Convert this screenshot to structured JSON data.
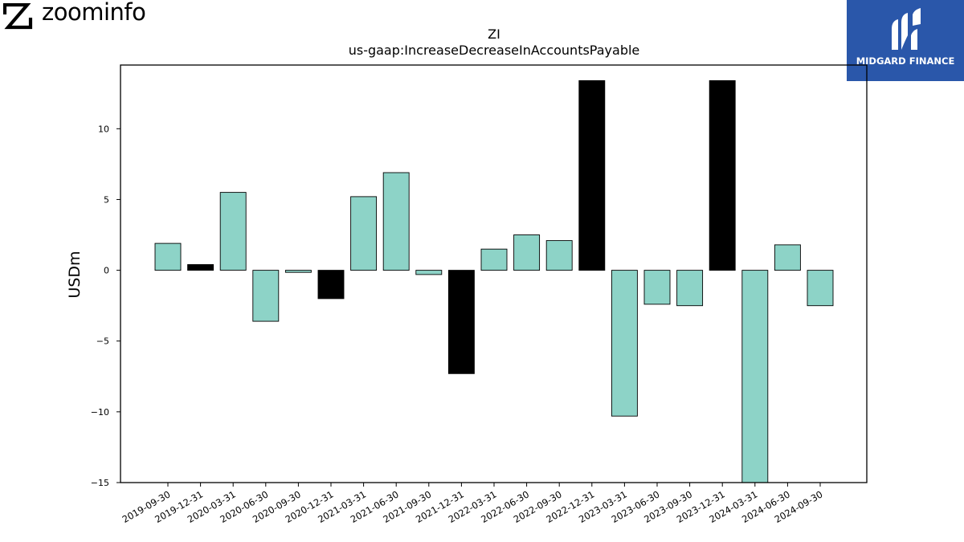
{
  "header": {
    "brand_name": "zoominfo",
    "partner_name": "MIDGARD FINANCE"
  },
  "colors": {
    "positive_bar": "#8dd3c7",
    "highlight_bar": "#000000",
    "partner_background": "#2a57aa"
  },
  "chart_data": {
    "type": "bar",
    "title": "ZI",
    "subtitle": "us-gaap:IncreaseDecreaseInAccountsPayable",
    "xlabel": "",
    "ylabel": "USDm",
    "ylim": [
      -15,
      14.5
    ],
    "yticks": [
      -15,
      -10,
      -5,
      0,
      5,
      10
    ],
    "ytick_labels": [
      "−15",
      "−10",
      "−5",
      "0",
      "5",
      "10"
    ],
    "grid": false,
    "categories": [
      "2019-09-30",
      "2019-12-31",
      "2020-03-31",
      "2020-06-30",
      "2020-09-30",
      "2020-12-31",
      "2021-03-31",
      "2021-06-30",
      "2021-09-30",
      "2021-12-31",
      "2022-03-31",
      "2022-06-30",
      "2022-09-30",
      "2022-12-31",
      "2023-03-31",
      "2023-06-30",
      "2023-09-30",
      "2023-12-31",
      "2024-03-31",
      "2024-06-30",
      "2024-09-30"
    ],
    "values": [
      1.9,
      0.4,
      5.5,
      -3.6,
      -0.15,
      -2.0,
      5.2,
      6.9,
      -0.3,
      -7.3,
      1.5,
      2.5,
      2.1,
      13.4,
      -10.3,
      -2.4,
      -2.5,
      13.4,
      -15.0,
      1.8,
      -2.5
    ],
    "highlighted": [
      false,
      true,
      false,
      false,
      false,
      true,
      false,
      false,
      false,
      true,
      false,
      false,
      false,
      true,
      false,
      false,
      false,
      true,
      false,
      false,
      false
    ]
  }
}
